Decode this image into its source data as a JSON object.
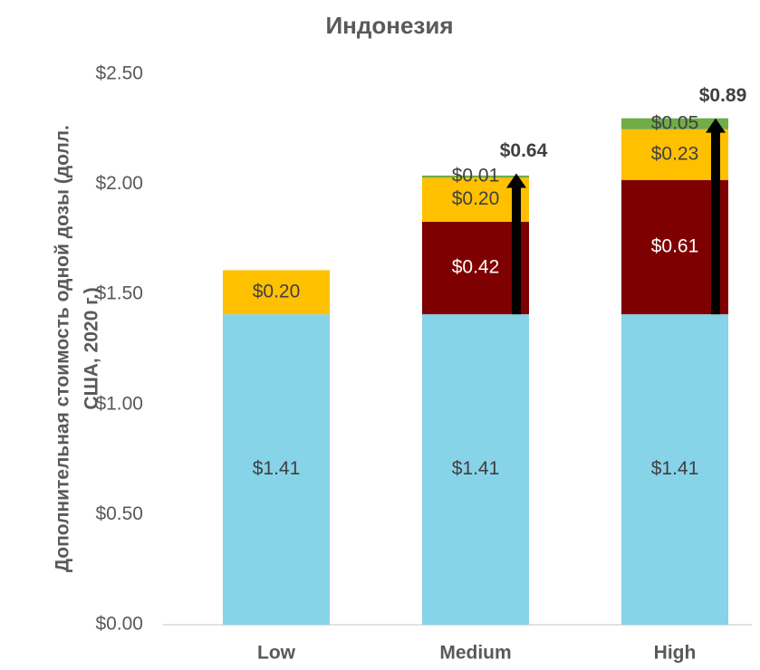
{
  "chart_data": {
    "type": "stacked_bar",
    "title": "Индонезия",
    "y_label": [
      "Дополнительная стоимость одной дозы (долл.",
      "США, 2020 г.)"
    ],
    "categories": [
      "Low",
      "Medium",
      "High"
    ],
    "series": [
      {
        "color": "#87d3e8",
        "values": [
          1.41,
          1.41,
          1.41
        ],
        "value_labels": [
          "$1.41",
          "$1.41",
          "$1.41"
        ]
      },
      {
        "color": "#7f0000",
        "values": [
          null,
          0.42,
          0.61
        ],
        "value_labels": [
          null,
          "$0.42",
          "$0.61"
        ]
      },
      {
        "color": "#ffc000",
        "values": [
          0.2,
          0.2,
          0.23
        ],
        "value_labels": [
          "$0.20",
          "$0.20",
          "$0.23"
        ]
      },
      {
        "color": "#70ad47",
        "values": [
          null,
          0.01,
          0.05
        ],
        "value_labels": [
          null,
          "$0.01",
          "$0.05"
        ]
      }
    ],
    "annotations": [
      {
        "category": "Medium",
        "value": 0.64,
        "label": "$0.64"
      },
      {
        "category": "High",
        "value": 0.89,
        "label": "$0.89"
      }
    ],
    "ylim": [
      0,
      2.5
    ],
    "yticks": [
      {
        "value": 0,
        "label": "$0.00"
      },
      {
        "value": 0.5,
        "label": "$0.50"
      },
      {
        "value": 1,
        "label": "$1.00"
      },
      {
        "value": 1.5,
        "label": "$1.50"
      },
      {
        "value": 2,
        "label": "$2.00"
      },
      {
        "value": 2.5,
        "label": "$2.50"
      }
    ]
  }
}
